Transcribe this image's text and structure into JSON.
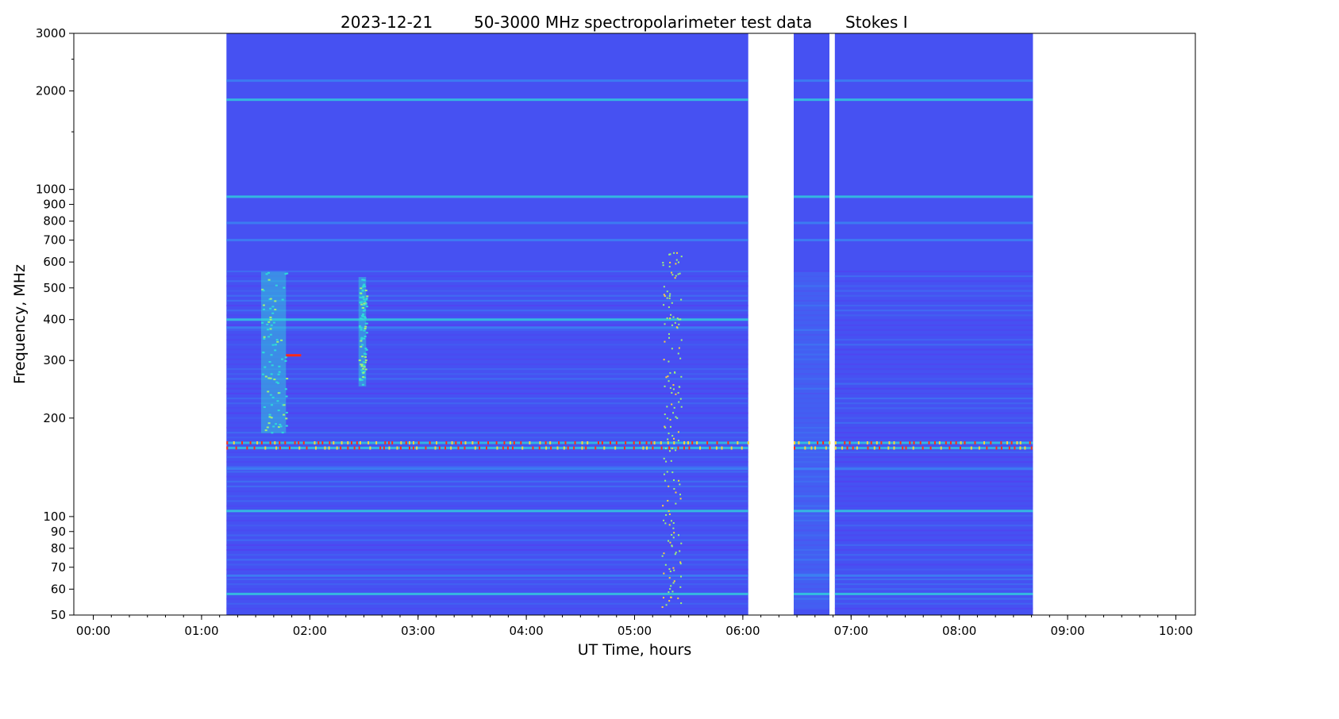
{
  "chart_data": {
    "type": "heatmap",
    "title_parts": [
      "2023-12-21",
      "50-3000 MHz spectropolarimeter test data",
      "Stokes I"
    ],
    "xlabel": "UT Time, hours",
    "ylabel": "Frequency, MHz",
    "x_unit": "hours UT",
    "xlim": [
      -0.18,
      10.18
    ],
    "y_unit": "MHz",
    "y_scale": "log",
    "ylim": [
      50,
      3000
    ],
    "x_ticks": [
      {
        "value": 0,
        "label": "00:00"
      },
      {
        "value": 1,
        "label": "01:00"
      },
      {
        "value": 2,
        "label": "02:00"
      },
      {
        "value": 3,
        "label": "03:00"
      },
      {
        "value": 4,
        "label": "04:00"
      },
      {
        "value": 5,
        "label": "05:00"
      },
      {
        "value": 6,
        "label": "06:00"
      },
      {
        "value": 7,
        "label": "07:00"
      },
      {
        "value": 8,
        "label": "08:00"
      },
      {
        "value": 9,
        "label": "09:00"
      },
      {
        "value": 10,
        "label": "10:00"
      }
    ],
    "y_ticks": [
      {
        "value": 50,
        "label": "50"
      },
      {
        "value": 60,
        "label": "60"
      },
      {
        "value": 70,
        "label": "70"
      },
      {
        "value": 80,
        "label": "80"
      },
      {
        "value": 90,
        "label": "90"
      },
      {
        "value": 100,
        "label": "100"
      },
      {
        "value": 200,
        "label": "200"
      },
      {
        "value": 300,
        "label": "300"
      },
      {
        "value": 400,
        "label": "400"
      },
      {
        "value": 500,
        "label": "500"
      },
      {
        "value": 600,
        "label": "600"
      },
      {
        "value": 700,
        "label": "700"
      },
      {
        "value": 800,
        "label": "800"
      },
      {
        "value": 900,
        "label": "900"
      },
      {
        "value": 1000,
        "label": "1000"
      },
      {
        "value": 2000,
        "label": "2000"
      },
      {
        "value": 3000,
        "label": "3000"
      }
    ],
    "colormap": "rainbow (blue-violet background, cyan-green-yellow-red for higher intensity)",
    "colors": {
      "background": "#4651f2",
      "dark": "#5a37f0",
      "light": "#3a8af2",
      "mid": "#2fd9d9",
      "green": "#9ef07a",
      "yellow": "#ffd23a",
      "red": "#ff2a1a"
    },
    "observation_segments": [
      {
        "start": 1.23,
        "end": 6.05
      },
      {
        "start": 6.47,
        "end": 6.8
      },
      {
        "start": 6.85,
        "end": 8.68
      }
    ],
    "bursts": [
      {
        "start": 1.55,
        "end": 1.78,
        "fmin": 180,
        "fmax": 560,
        "color": "mid"
      },
      {
        "start": 2.45,
        "end": 2.52,
        "fmin": 250,
        "fmax": 540,
        "color": "mid"
      },
      {
        "start": 1.78,
        "end": 1.92,
        "fmin": 308,
        "fmax": 312,
        "color": "red"
      }
    ],
    "bands": [
      {
        "freq": 1880,
        "color": "mid",
        "segments": "all"
      },
      {
        "freq": 2150,
        "color": "light",
        "segments": "all"
      },
      {
        "freq": 950,
        "color": "mid",
        "segments": "all"
      },
      {
        "freq": 790,
        "color": "light",
        "segments": "all"
      },
      {
        "freq": 700,
        "color": "light",
        "segments": "all"
      },
      {
        "freq": 400,
        "color": "mid",
        "segments": "first"
      },
      {
        "freq": 378,
        "color": "light",
        "segments": "first"
      },
      {
        "freq": 168,
        "color": "red",
        "segments": "all"
      },
      {
        "freq": 162,
        "color": "red",
        "segments": "all"
      },
      {
        "freq": 140,
        "color": "light",
        "segments": "all"
      },
      {
        "freq": 104,
        "color": "mid",
        "segments": "all"
      },
      {
        "freq": 58,
        "color": "mid",
        "segments": "all"
      },
      {
        "freq": 66,
        "color": "light",
        "segments": "all"
      }
    ]
  }
}
